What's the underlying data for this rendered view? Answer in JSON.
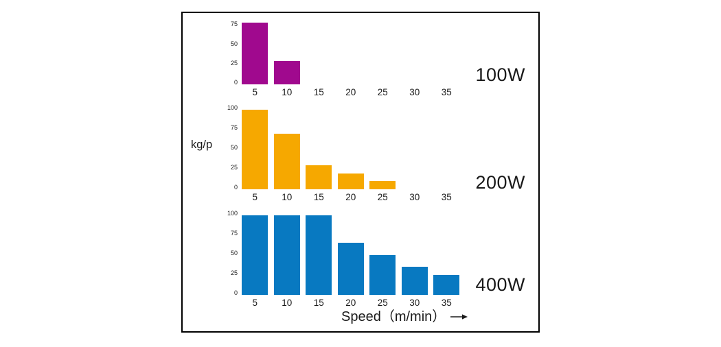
{
  "figure": {
    "background": "#ffffff",
    "frame_border_color": "#000000",
    "text_color": "#1a1a1a"
  },
  "axes": {
    "y_label": "kg/p",
    "x_label": "Speed（m/min）",
    "x_arrow": "→",
    "x_ticks": [
      5,
      10,
      15,
      20,
      25,
      30,
      35
    ]
  },
  "chart_data": [
    {
      "type": "bar",
      "label": "100W",
      "color": "#a0098e",
      "categories": [
        5,
        10,
        15,
        20,
        25,
        30,
        35
      ],
      "values": [
        80,
        30,
        null,
        null,
        null,
        null,
        null
      ],
      "yticks": [
        0,
        25,
        50,
        75
      ],
      "ylim": [
        0,
        85
      ],
      "xlabel": "Speed（m/min）",
      "ylabel": "kg/p",
      "grid": false,
      "legend": "none"
    },
    {
      "type": "bar",
      "label": "200W",
      "color": "#f6a800",
      "categories": [
        5,
        10,
        15,
        20,
        25,
        30,
        35
      ],
      "values": [
        100,
        70,
        30,
        20,
        10,
        null,
        null
      ],
      "yticks": [
        0,
        25,
        50,
        75,
        100
      ],
      "ylim": [
        0,
        100
      ],
      "xlabel": "Speed（m/min）",
      "ylabel": "kg/p",
      "grid": false,
      "legend": "none"
    },
    {
      "type": "bar",
      "label": "400W",
      "color": "#0879c1",
      "categories": [
        5,
        10,
        15,
        20,
        25,
        30,
        35
      ],
      "values": [
        100,
        100,
        100,
        65,
        50,
        35,
        25
      ],
      "yticks": [
        0,
        25,
        50,
        75,
        100
      ],
      "ylim": [
        0,
        100
      ],
      "xlabel": "Speed（m/min）",
      "ylabel": "kg/p",
      "grid": false,
      "legend": "none"
    }
  ]
}
